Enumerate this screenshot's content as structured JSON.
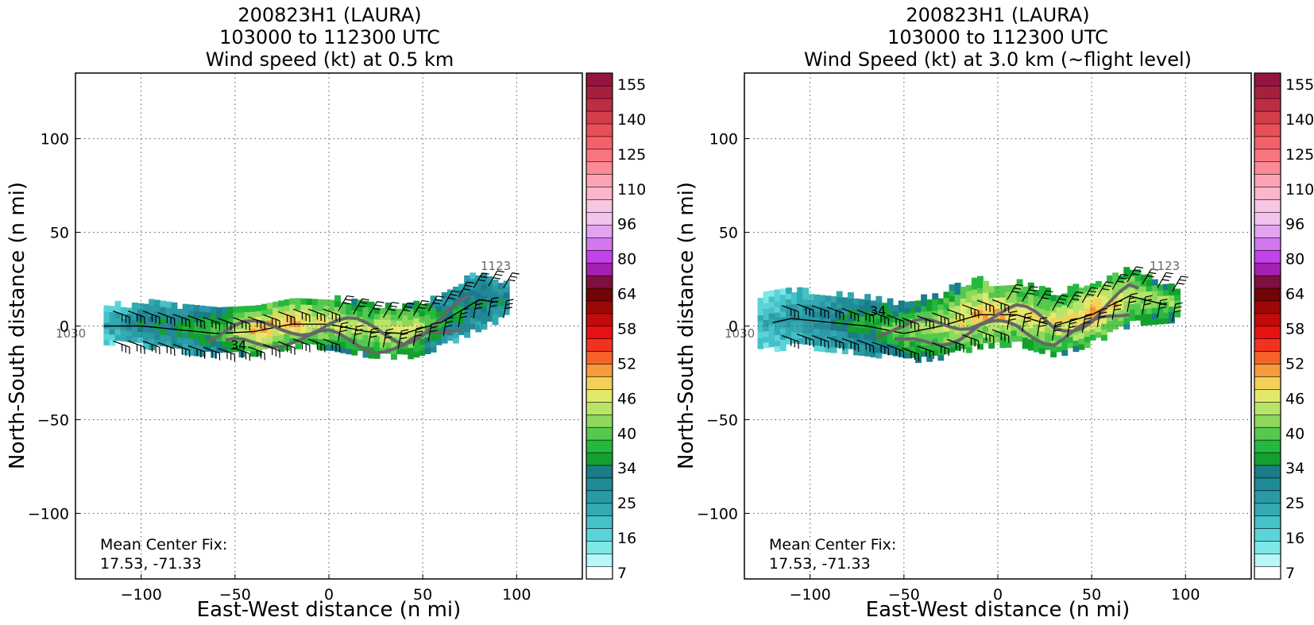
{
  "chart_data": [
    {
      "type": "heatmap",
      "title_lines": [
        "200823H1 (LAURA)",
        "103000 to 112300 UTC",
        "Wind speed (kt) at 0.5 km"
      ],
      "xlabel": "East-West distance (n mi)",
      "ylabel": "North-South distance (n mi)",
      "xlim": [
        -135,
        135
      ],
      "ylim": [
        -135,
        135
      ],
      "xticks": [
        -100,
        -50,
        0,
        50,
        100
      ],
      "yticks": [
        -100,
        -50,
        0,
        50,
        100
      ],
      "grid": true,
      "track_start_label": "1030",
      "track_end_label": "1123",
      "contour_label": "34",
      "mean_center_fix_label": "Mean Center Fix:",
      "mean_center_fix_value": "17.53, -71.33",
      "swath": {
        "x": [
          -120,
          -100,
          -80,
          -60,
          -40,
          -20,
          0,
          20,
          40,
          60,
          80,
          95
        ],
        "center_y": [
          0,
          0,
          -2,
          -4,
          -3,
          1,
          1,
          -3,
          -4,
          2,
          14,
          12
        ],
        "half_width": [
          10,
          12,
          13,
          13,
          13,
          13,
          14,
          14,
          14,
          14,
          16,
          8
        ],
        "peak_kt": [
          18,
          24,
          27,
          32,
          45,
          44,
          40,
          38,
          42,
          28,
          26,
          24
        ]
      },
      "colorbar_labels": [
        "155",
        "140",
        "125",
        "110",
        "96",
        "80",
        "64",
        "58",
        "52",
        "46",
        "40",
        "34",
        "25",
        "16",
        "7"
      ]
    },
    {
      "type": "heatmap",
      "title_lines": [
        "200823H1 (LAURA)",
        "103000 to 112300 UTC",
        "Wind Speed (kt) at 3.0 km (~flight level)"
      ],
      "xlabel": "East-West distance (n mi)",
      "ylabel": "North-South distance (n mi)",
      "xlim": [
        -135,
        135
      ],
      "ylim": [
        -135,
        135
      ],
      "xticks": [
        -100,
        -50,
        0,
        50,
        100
      ],
      "yticks": [
        -100,
        -50,
        0,
        50,
        100
      ],
      "grid": true,
      "track_start_label": "1030",
      "track_end_label": "1123",
      "contour_label": "34",
      "mean_center_fix_label": "Mean Center Fix:",
      "mean_center_fix_value": "17.53, -71.33",
      "swath": {
        "x": [
          -128,
          -110,
          -90,
          -70,
          -50,
          -30,
          -10,
          10,
          30,
          50,
          70,
          95
        ],
        "center_y": [
          0,
          4,
          2,
          0,
          -4,
          0,
          6,
          6,
          0,
          6,
          16,
          10
        ],
        "half_width": [
          15,
          16,
          16,
          16,
          16,
          18,
          18,
          17,
          17,
          16,
          16,
          8
        ],
        "peak_kt": [
          16,
          20,
          24,
          30,
          34,
          38,
          44,
          42,
          40,
          46,
          38,
          36
        ]
      },
      "colorbar_labels": [
        "155",
        "140",
        "125",
        "110",
        "96",
        "80",
        "64",
        "58",
        "52",
        "46",
        "40",
        "34",
        "25",
        "16",
        "7"
      ]
    }
  ],
  "colorbar_colors": [
    "#ffffff",
    "#b6f7f7",
    "#7ce8e8",
    "#5ad4d8",
    "#46c1c8",
    "#33a9b2",
    "#2a9aa5",
    "#218a97",
    "#1a7c88",
    "#14a02f",
    "#24b83e",
    "#56c84e",
    "#8ed85c",
    "#b8e46a",
    "#e3e86c",
    "#f3d058",
    "#f79a3a",
    "#f5632a",
    "#f03320",
    "#e81111",
    "#c20b0b",
    "#9e0707",
    "#730404",
    "#7e1040",
    "#a520b0",
    "#c143e9",
    "#d278ee",
    "#e2a3f0",
    "#f0c4ee",
    "#f7c6e2",
    "#fbb6cc",
    "#fba4b6",
    "#fb8b98",
    "#f97680",
    "#f5606a",
    "#ea4e57",
    "#d43d4c",
    "#bd2d44",
    "#a81f3e",
    "#951540"
  ]
}
